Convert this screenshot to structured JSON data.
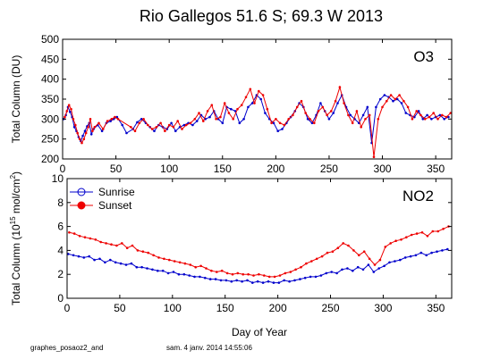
{
  "title": "Rio Gallegos  51.6 S; 69.3 W   2013",
  "footer": {
    "left": "graphes_posaoz2_and",
    "right": "sam. 4 janv. 2014 14:55:06"
  },
  "colors": {
    "sunrise": "#0000cc",
    "sunset": "#ee0000",
    "axis": "#000000"
  },
  "chart_data": [
    {
      "type": "line",
      "panel_label": "O3",
      "xlabel": "",
      "ylabel": "Total Column  (DU)",
      "xlim": [
        0,
        365
      ],
      "ylim": [
        200,
        500
      ],
      "xticks": [
        0,
        50,
        100,
        150,
        200,
        250,
        300,
        350
      ],
      "yticks": [
        200,
        250,
        300,
        350,
        400,
        450,
        500
      ],
      "grid": false,
      "series": [
        {
          "name": "Sunrise",
          "color": "#0000cc",
          "x": [
            1,
            3,
            5,
            7,
            9,
            11,
            13,
            15,
            17,
            19,
            21,
            23,
            25,
            27,
            29,
            33,
            37,
            41,
            45,
            48,
            51,
            56,
            60,
            66,
            70,
            74,
            78,
            82,
            86,
            90,
            94,
            98,
            102,
            106,
            110,
            114,
            118,
            122,
            126,
            130,
            134,
            138,
            142,
            146,
            150,
            154,
            158,
            162,
            166,
            170,
            174,
            178,
            182,
            186,
            190,
            194,
            198,
            202,
            206,
            210,
            214,
            218,
            222,
            226,
            230,
            234,
            238,
            242,
            246,
            250,
            254,
            258,
            262,
            266,
            270,
            274,
            278,
            282,
            286,
            290,
            294,
            298,
            302,
            306,
            310,
            314,
            318,
            322,
            326,
            330,
            334,
            338,
            342,
            346,
            350,
            354,
            358,
            362
          ],
          "y": [
            300,
            310,
            330,
            318,
            305,
            280,
            270,
            255,
            245,
            258,
            270,
            282,
            290,
            262,
            275,
            285,
            270,
            290,
            295,
            300,
            305,
            285,
            265,
            275,
            292,
            300,
            290,
            280,
            270,
            285,
            280,
            275,
            290,
            270,
            280,
            285,
            290,
            285,
            295,
            310,
            300,
            305,
            320,
            300,
            290,
            330,
            325,
            320,
            290,
            300,
            330,
            340,
            360,
            350,
            315,
            300,
            290,
            270,
            275,
            290,
            305,
            320,
            340,
            330,
            300,
            290,
            310,
            340,
            320,
            300,
            315,
            340,
            360,
            330,
            310,
            300,
            290,
            310,
            330,
            240,
            330,
            350,
            360,
            355,
            345,
            350,
            340,
            315,
            310,
            305,
            320,
            300,
            310,
            300,
            305,
            310,
            300,
            305
          ]
        },
        {
          "name": "Sunset",
          "color": "#ee0000",
          "x": [
            2,
            4,
            6,
            8,
            10,
            12,
            14,
            16,
            18,
            20,
            22,
            24,
            26,
            28,
            30,
            34,
            38,
            42,
            46,
            49,
            52,
            64,
            68,
            72,
            76,
            80,
            84,
            88,
            92,
            96,
            100,
            104,
            108,
            112,
            116,
            120,
            124,
            128,
            132,
            136,
            140,
            144,
            148,
            152,
            156,
            160,
            164,
            168,
            172,
            176,
            180,
            184,
            188,
            192,
            196,
            200,
            204,
            208,
            212,
            216,
            220,
            224,
            228,
            232,
            236,
            240,
            244,
            248,
            252,
            256,
            260,
            264,
            268,
            272,
            276,
            280,
            284,
            288,
            292,
            296,
            300,
            304,
            308,
            312,
            316,
            320,
            324,
            328,
            332,
            336,
            340,
            344,
            348,
            352,
            356,
            360,
            364
          ],
          "y": [
            305,
            320,
            335,
            325,
            300,
            285,
            265,
            250,
            240,
            250,
            265,
            280,
            300,
            270,
            280,
            290,
            275,
            295,
            300,
            305,
            300,
            280,
            270,
            290,
            300,
            285,
            275,
            280,
            290,
            270,
            285,
            280,
            295,
            275,
            285,
            290,
            300,
            315,
            295,
            320,
            335,
            300,
            305,
            340,
            315,
            300,
            325,
            335,
            355,
            375,
            340,
            370,
            360,
            325,
            290,
            300,
            290,
            285,
            300,
            310,
            330,
            345,
            315,
            300,
            290,
            320,
            330,
            310,
            320,
            345,
            380,
            340,
            310,
            290,
            320,
            280,
            300,
            310,
            205,
            300,
            330,
            345,
            360,
            350,
            360,
            345,
            330,
            300,
            320,
            310,
            300,
            305,
            315,
            300,
            310,
            305,
            315
          ]
        }
      ]
    },
    {
      "type": "line",
      "panel_label": "NO2",
      "xlabel": "Day of Year",
      "ylabel": "Total Column (10",
      "ylabel_exp": "15",
      "ylabel_rest": " mol/cm",
      "ylabel_exp2": "2",
      "ylabel_end": ")",
      "xlim": [
        0,
        365
      ],
      "ylim": [
        0,
        10
      ],
      "xticks": [
        0,
        50,
        100,
        150,
        200,
        250,
        300,
        350
      ],
      "yticks": [
        0,
        2,
        4,
        6,
        8,
        10
      ],
      "grid": false,
      "legend": {
        "placement": "top-left",
        "entries": [
          "Sunrise",
          "Sunset"
        ]
      },
      "series": [
        {
          "name": "Sunrise",
          "color": "#0000cc",
          "x": [
            1,
            6,
            11,
            16,
            21,
            26,
            31,
            36,
            41,
            46,
            51,
            56,
            61,
            66,
            71,
            76,
            81,
            86,
            91,
            96,
            101,
            106,
            111,
            116,
            121,
            126,
            131,
            136,
            141,
            146,
            151,
            156,
            161,
            166,
            171,
            176,
            181,
            186,
            191,
            196,
            201,
            206,
            211,
            216,
            221,
            226,
            231,
            236,
            241,
            246,
            251,
            256,
            261,
            266,
            271,
            276,
            281,
            286,
            291,
            296,
            301,
            306,
            311,
            316,
            321,
            326,
            331,
            336,
            341,
            346,
            351,
            356,
            361
          ],
          "y": [
            3.7,
            3.6,
            3.5,
            3.4,
            3.5,
            3.2,
            3.3,
            3.0,
            3.2,
            3.0,
            2.9,
            2.8,
            2.9,
            2.6,
            2.6,
            2.5,
            2.4,
            2.3,
            2.3,
            2.1,
            2.2,
            2.0,
            2.0,
            1.9,
            1.8,
            1.8,
            1.7,
            1.6,
            1.6,
            1.5,
            1.5,
            1.4,
            1.5,
            1.4,
            1.5,
            1.3,
            1.4,
            1.3,
            1.4,
            1.3,
            1.3,
            1.5,
            1.4,
            1.5,
            1.6,
            1.7,
            1.8,
            1.8,
            1.9,
            2.1,
            2.2,
            2.1,
            2.4,
            2.5,
            2.3,
            2.6,
            2.4,
            2.8,
            2.2,
            2.5,
            2.7,
            3.0,
            3.1,
            3.2,
            3.4,
            3.5,
            3.6,
            3.8,
            3.6,
            3.8,
            3.9,
            4.0,
            4.1
          ]
        },
        {
          "name": "Sunset",
          "color": "#ee0000",
          "x": [
            2,
            7,
            12,
            17,
            22,
            27,
            32,
            37,
            42,
            47,
            52,
            57,
            62,
            67,
            72,
            77,
            82,
            87,
            92,
            97,
            102,
            107,
            112,
            117,
            122,
            127,
            132,
            137,
            142,
            147,
            152,
            157,
            162,
            167,
            172,
            177,
            182,
            187,
            192,
            197,
            202,
            207,
            212,
            217,
            222,
            227,
            232,
            237,
            242,
            247,
            252,
            257,
            262,
            267,
            272,
            277,
            282,
            287,
            292,
            297,
            302,
            307,
            312,
            317,
            322,
            327,
            332,
            337,
            342,
            347,
            352,
            357,
            362
          ],
          "y": [
            5.5,
            5.4,
            5.2,
            5.1,
            5.0,
            4.9,
            4.7,
            4.6,
            4.5,
            4.4,
            4.6,
            4.2,
            4.4,
            4.0,
            3.9,
            3.8,
            3.6,
            3.4,
            3.3,
            3.2,
            3.1,
            3.0,
            2.9,
            2.8,
            2.6,
            2.7,
            2.5,
            2.3,
            2.2,
            2.3,
            2.1,
            2.0,
            2.1,
            2.0,
            2.0,
            1.9,
            2.0,
            1.9,
            1.8,
            1.8,
            1.9,
            2.1,
            2.2,
            2.4,
            2.6,
            2.9,
            3.1,
            3.3,
            3.5,
            3.8,
            3.9,
            4.2,
            4.6,
            4.4,
            4.0,
            3.6,
            3.9,
            3.3,
            2.8,
            3.2,
            4.3,
            4.6,
            4.8,
            4.9,
            5.1,
            5.3,
            5.4,
            5.5,
            5.2,
            5.6,
            5.6,
            5.8,
            6.0
          ]
        }
      ]
    }
  ]
}
